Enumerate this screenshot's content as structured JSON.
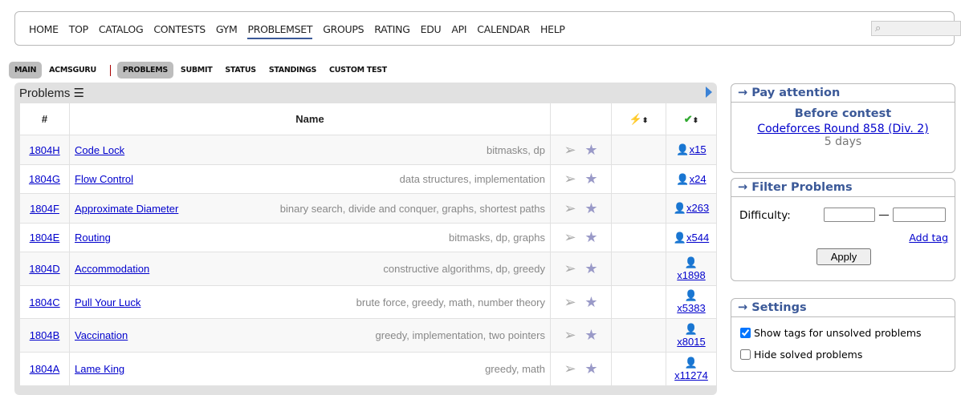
{
  "nav": {
    "items": [
      "HOME",
      "TOP",
      "CATALOG",
      "CONTESTS",
      "GYM",
      "PROBLEMSET",
      "GROUPS",
      "RATING",
      "EDU",
      "API",
      "CALENDAR",
      "HELP"
    ],
    "active": "PROBLEMSET"
  },
  "subnav": {
    "left": [
      "MAIN",
      "ACMSGURU"
    ],
    "right": [
      "PROBLEMS",
      "SUBMIT",
      "STATUS",
      "STANDINGS",
      "CUSTOM TEST"
    ]
  },
  "problems": {
    "title": "Problems",
    "headers": {
      "num": "#",
      "name": "Name"
    },
    "rows": [
      {
        "id": "1804H",
        "name": "Code Lock",
        "tags": "bitmasks, dp",
        "solved": "x15"
      },
      {
        "id": "1804G",
        "name": "Flow Control",
        "tags": "data structures, implementation",
        "solved": "x24"
      },
      {
        "id": "1804F",
        "name": "Approximate Diameter",
        "tags": "binary search, divide and conquer, graphs, shortest paths",
        "solved": "x263"
      },
      {
        "id": "1804E",
        "name": "Routing",
        "tags": "bitmasks, dp, graphs",
        "solved": "x544"
      },
      {
        "id": "1804D",
        "name": "Accommodation",
        "tags": "constructive algorithms, dp, greedy",
        "solved": "x1898"
      },
      {
        "id": "1804C",
        "name": "Pull Your Luck",
        "tags": "brute force, greedy, math, number theory",
        "solved": "x5383"
      },
      {
        "id": "1804B",
        "name": "Vaccination",
        "tags": "greedy, implementation, two pointers",
        "solved": "x8015"
      },
      {
        "id": "1804A",
        "name": "Lame King",
        "tags": "greedy, math",
        "solved": "x11274"
      }
    ]
  },
  "pay": {
    "title": "→ Pay attention",
    "heading": "Before contest",
    "contest": "Codeforces Round 858 (Div. 2)",
    "time": "5 days"
  },
  "filter": {
    "title": "→ Filter Problems",
    "difficulty": "Difficulty:",
    "dash": "—",
    "add_tag": "Add tag",
    "apply": "Apply"
  },
  "settings": {
    "title": "→ Settings",
    "show_tags": "Show tags for unsolved problems",
    "show_tags_checked": true,
    "hide_solved": "Hide solved problems",
    "hide_solved_checked": false
  }
}
